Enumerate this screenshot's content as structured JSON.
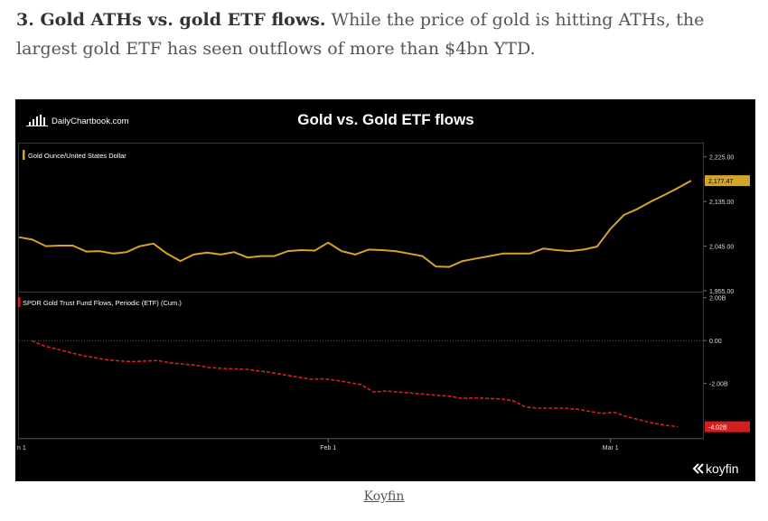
{
  "article": {
    "heading": "3. Gold ATHs vs. gold ETF flows.",
    "body": " While the price of gold is hitting ATHs, the largest gold ETF has seen outflows of more than $4bn YTD."
  },
  "caption": {
    "source_link": "Koyfin"
  },
  "brand": {
    "left": "DailyChartbook.com",
    "right": "koyfin"
  },
  "colors": {
    "gold": "#d4a32a",
    "red": "#d51f1f",
    "background": "#000000",
    "grid": "#3a3a3a"
  },
  "chart_data": [
    {
      "type": "line",
      "title": "Gold vs. Gold ETF flows",
      "panel": "top",
      "series": [
        {
          "name": "Gold Ounce/United States Dollar",
          "color": "#d4a32a",
          "values": [
            2063,
            2058,
            2045,
            2046,
            2046,
            2034,
            2035,
            2030,
            2033,
            2045,
            2050,
            2030,
            2015,
            2028,
            2032,
            2028,
            2033,
            2022,
            2025,
            2025,
            2035,
            2037,
            2036,
            2052,
            2035,
            2028,
            2038,
            2037,
            2035,
            2030,
            2025,
            2004,
            2003,
            2015,
            2020,
            2025,
            2030,
            2030,
            2030,
            2040,
            2037,
            2035,
            2038,
            2044,
            2080,
            2108,
            2120,
            2135,
            2148,
            2162,
            2177
          ]
        }
      ],
      "y_ticks": [
        "2,225.00",
        "2,135.00",
        "2,045.00",
        "1,955.00"
      ],
      "y_tick_values": [
        2225,
        2135,
        2045,
        1955
      ],
      "ylim": [
        1955,
        2250
      ],
      "last_value_label": "2,177.47"
    },
    {
      "type": "line",
      "panel": "bottom",
      "series": [
        {
          "name": "SPDR Gold Trust  Fund Flows, Periodic (ETF) (Cum.)",
          "color": "#d51f1f",
          "style": "dashed",
          "values": [
            0.0,
            -0.25,
            -0.4,
            -0.55,
            -0.7,
            -0.8,
            -0.9,
            -0.95,
            -0.98,
            -0.95,
            -0.93,
            -1.05,
            -1.1,
            -1.15,
            -1.25,
            -1.3,
            -1.32,
            -1.35,
            -1.42,
            -1.5,
            -1.6,
            -1.7,
            -1.8,
            -1.78,
            -1.85,
            -1.95,
            -2.05,
            -2.4,
            -2.35,
            -2.4,
            -2.45,
            -2.5,
            -2.55,
            -2.6,
            -2.7,
            -2.67,
            -2.7,
            -2.72,
            -2.8,
            -3.1,
            -3.15,
            -3.15,
            -3.15,
            -3.2,
            -3.3,
            -3.4,
            -3.35,
            -3.55,
            -3.7,
            -3.85,
            -3.95,
            -4.02
          ]
        }
      ],
      "y_ticks": [
        "2.00B",
        "0.00",
        "-2.00B"
      ],
      "y_tick_values": [
        2,
        0,
        -2
      ],
      "ylim": [
        -4.5,
        2.2
      ],
      "last_value_label": "-4.02B"
    }
  ],
  "x_axis": {
    "labels": [
      "n 1",
      "Feb 1",
      "Mar 1"
    ],
    "label_index": [
      0,
      23,
      44
    ]
  }
}
